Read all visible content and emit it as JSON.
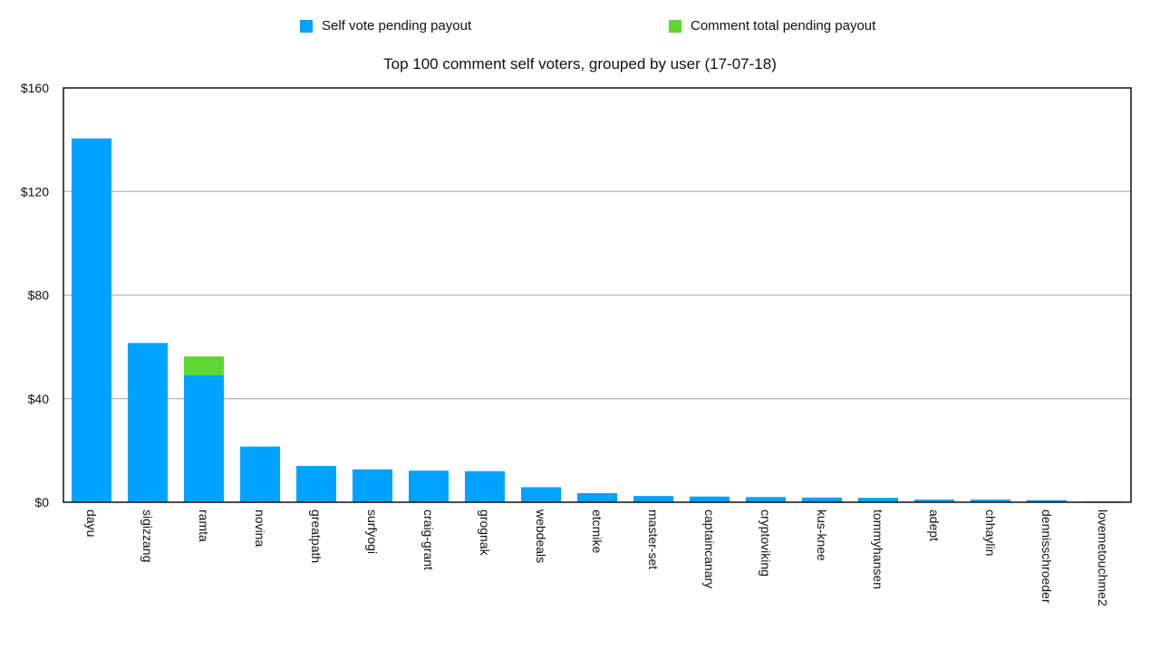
{
  "chart_data": {
    "type": "bar",
    "stacked": true,
    "title": "Top 100 comment self voters, grouped by user (17-07-18)",
    "xlabel": "",
    "ylabel": "",
    "ylim": [
      0,
      160
    ],
    "yticks": [
      0,
      40,
      80,
      120,
      160
    ],
    "ytick_labels": [
      "$0",
      "$40",
      "$80",
      "$120",
      "$160"
    ],
    "grid": true,
    "legend_position": "top",
    "categories": [
      "dayu",
      "sigizzang",
      "ramta",
      "novina",
      "greatpath",
      "surfyogi",
      "craig-grant",
      "grognak",
      "webdeals",
      "etcmike",
      "master-set",
      "captaincanary",
      "cryptoviking",
      "kus-knee",
      "tommyhansen",
      "adept",
      "chhaylin",
      "dennisschroeder",
      "lovemetouchme2"
    ],
    "series": [
      {
        "name": "Self vote pending payout",
        "color": "#00a2ff",
        "values": [
          140.5,
          61.5,
          49,
          21.5,
          14,
          12.7,
          12.2,
          12,
          5.8,
          3.5,
          2.4,
          2.2,
          2,
          1.8,
          1.7,
          1,
          1,
          0.8,
          0.3
        ]
      },
      {
        "name": "Comment total pending payout",
        "color": "#5ed633",
        "values": [
          0,
          0,
          7.3,
          0,
          0,
          0,
          0,
          0,
          0,
          0,
          0,
          0,
          0,
          0,
          0,
          0,
          0,
          0,
          0
        ]
      }
    ]
  }
}
